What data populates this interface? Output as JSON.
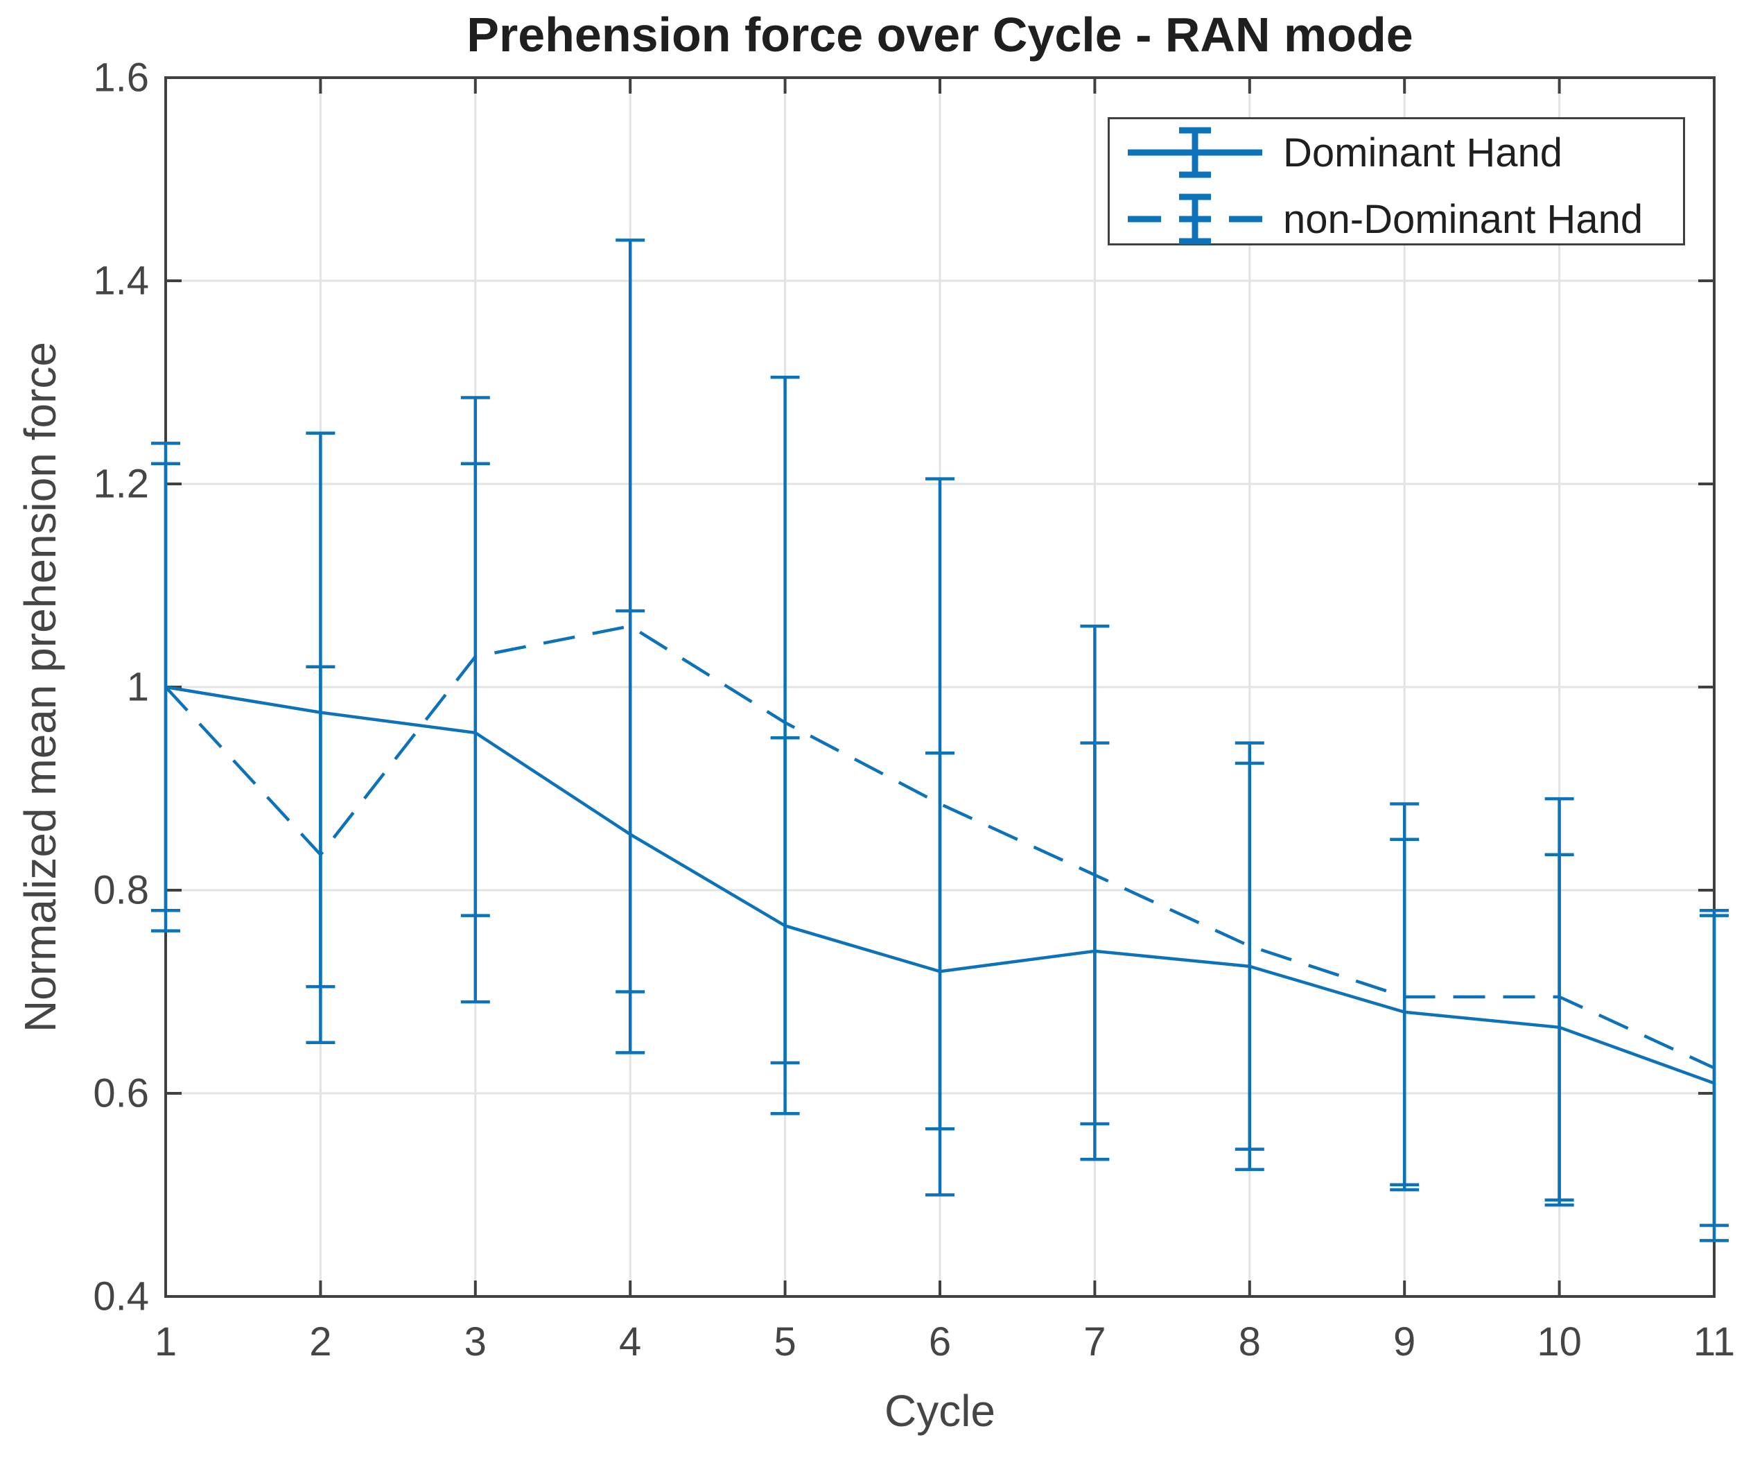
{
  "chart_data": {
    "type": "line",
    "title": "Prehension force over Cycle - RAN mode",
    "xlabel": "Cycle",
    "ylabel": "Normalized mean prehension force",
    "x": [
      1,
      2,
      3,
      4,
      5,
      6,
      7,
      8,
      9,
      10,
      11
    ],
    "xlim": [
      1,
      11
    ],
    "ylim": [
      0.4,
      1.6
    ],
    "x_tick_labels": [
      "1",
      "2",
      "3",
      "4",
      "5",
      "6",
      "7",
      "8",
      "9",
      "10",
      "11"
    ],
    "y_tick_labels": [
      "0.4",
      "0.6",
      "0.8",
      "1",
      "1.2",
      "1.4",
      "1.6"
    ],
    "grid": true,
    "legend_position": "top-right",
    "series": [
      {
        "name": "Dominant Hand",
        "line_style": "solid",
        "color": "#0c73ba",
        "values": [
          1.0,
          0.975,
          0.955,
          0.855,
          0.765,
          0.72,
          0.74,
          0.725,
          0.68,
          0.665,
          0.61
        ],
        "err_low": [
          0.76,
          0.705,
          0.69,
          0.64,
          0.58,
          0.5,
          0.535,
          0.525,
          0.51,
          0.49,
          0.455
        ],
        "err_high": [
          1.24,
          1.25,
          1.22,
          1.075,
          0.95,
          0.935,
          0.945,
          0.925,
          0.85,
          0.835,
          0.775
        ]
      },
      {
        "name": "non-Dominant Hand",
        "line_style": "dashed",
        "color": "#0c73ba",
        "values": [
          1.0,
          0.835,
          1.03,
          1.06,
          0.965,
          0.885,
          0.815,
          0.745,
          0.695,
          0.695,
          0.625
        ],
        "err_low": [
          0.78,
          0.65,
          0.775,
          0.7,
          0.63,
          0.565,
          0.57,
          0.545,
          0.505,
          0.495,
          0.47
        ],
        "err_high": [
          1.22,
          1.02,
          1.285,
          1.44,
          1.305,
          1.205,
          1.06,
          0.945,
          0.885,
          0.89,
          0.78
        ]
      }
    ],
    "colors": {
      "line": "#0c73ba",
      "axis_box": "#404040",
      "grid": "#e3e3e3",
      "tick_text": "#454545",
      "title_text": "#1f1f1f",
      "background": "#ffffff"
    }
  }
}
